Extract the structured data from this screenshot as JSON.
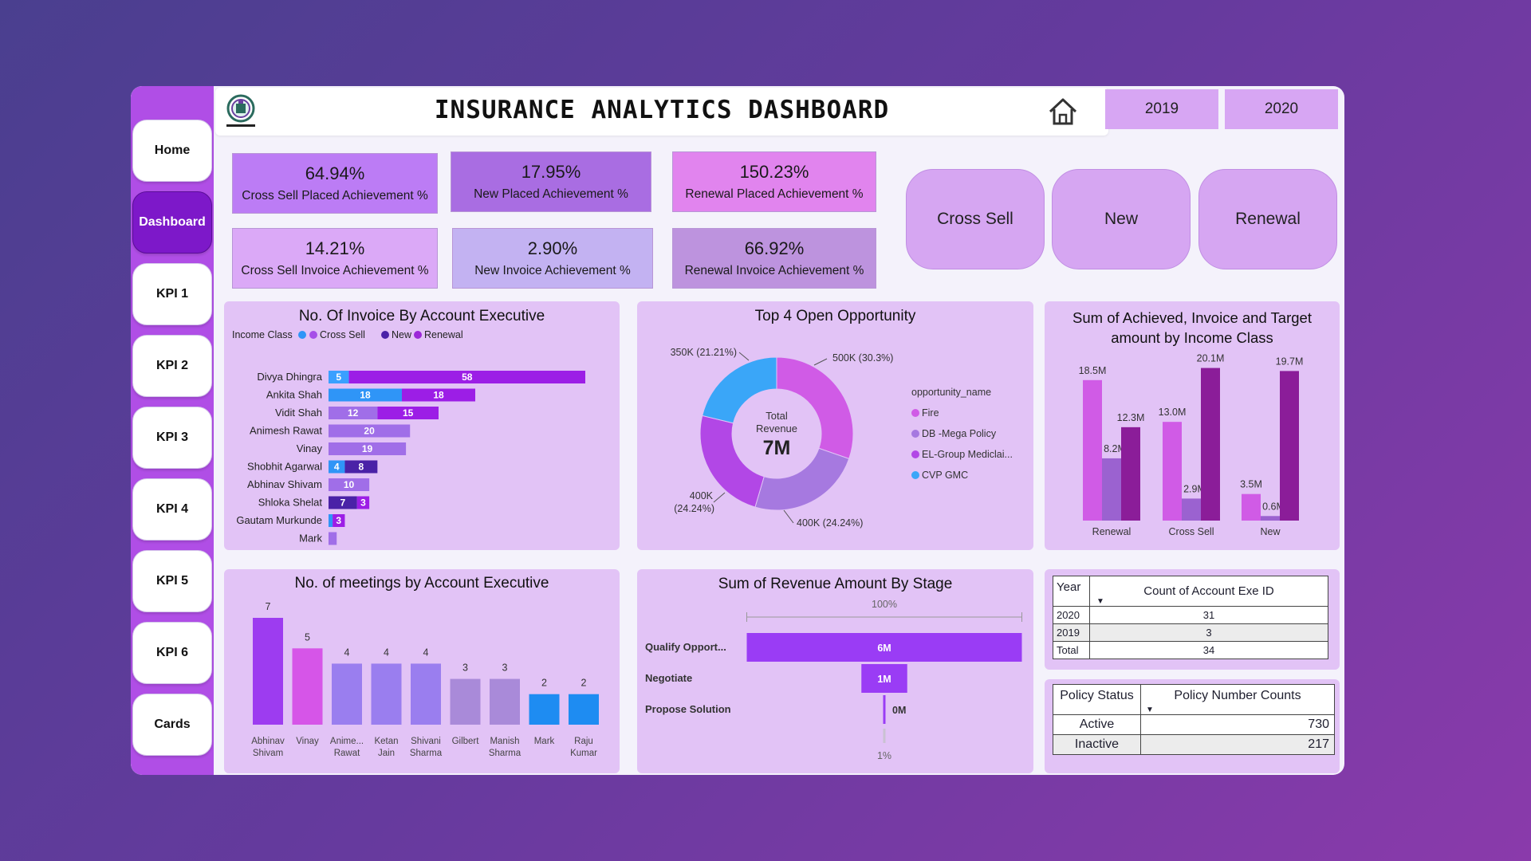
{
  "title": "INSURANCE ANALYTICS DASHBOARD",
  "years": [
    "2019",
    "2020"
  ],
  "nav": [
    "Home",
    "Dashboard",
    "KPI 1",
    "KPI 2",
    "KPI 3",
    "KPI 4",
    "KPI 5",
    "KPI 6",
    "Cards"
  ],
  "active_nav": "Dashboard",
  "kpis": [
    {
      "value": "64.94%",
      "label": "Cross Sell Placed Achievement %",
      "color": "#bc7cf5"
    },
    {
      "value": "17.95%",
      "label": "New Placed Achievement %",
      "color": "#a96de2"
    },
    {
      "value": "150.23%",
      "label": "Renewal Placed Achievement %",
      "color": "#e184ee"
    },
    {
      "value": "14.21%",
      "label": "Cross Sell Invoice Achievement %",
      "color": "#dba9f7"
    },
    {
      "value": "2.90%",
      "label": "New Invoice Achievement %",
      "color": "#c3b2f2"
    },
    {
      "value": "66.92%",
      "label": "Renewal Invoice Achievement %",
      "color": "#bd93de"
    }
  ],
  "pills": [
    "Cross Sell",
    "New",
    "Renewal"
  ],
  "invoice_panel": {
    "title": "No. Of Invoice By Account Executive",
    "legend_title": "Income Class",
    "legend": [
      {
        "name": "Cross Sell",
        "color": "#a64fe8"
      },
      {
        "name": "New",
        "color": "#4a22a7"
      },
      {
        "name": "Renewal",
        "color": "#9c27d8"
      }
    ]
  },
  "opportunity_panel": {
    "title": "Top 4 Open Opportunity",
    "center_label": "Total Revenue",
    "center_value": "7M",
    "legend_title": "opportunity_name"
  },
  "income_panel": {
    "title": "Sum of Achieved, Invoice and Target amount by Income Class"
  },
  "meetings_panel": {
    "title": "No. of meetings by Account Executive"
  },
  "stage_panel": {
    "title": "Sum of Revenue Amount By Stage",
    "top_label": "100%",
    "bottom_label": "1%"
  },
  "year_table": {
    "headers": [
      "Year",
      "Count of Account Exe ID"
    ],
    "rows": [
      {
        "year": "2020",
        "count": "31"
      },
      {
        "year": "2019",
        "count": "3"
      },
      {
        "year": "Total",
        "count": "34"
      }
    ]
  },
  "policy_table": {
    "headers": [
      "Policy Status",
      "Policy Number Counts"
    ],
    "rows": [
      {
        "status": "Active",
        "count": "730"
      },
      {
        "status": "Inactive",
        "count": "217"
      }
    ]
  },
  "chart_data": [
    {
      "type": "bar",
      "orientation": "horizontal",
      "stacked": true,
      "title": "No. Of Invoice By Account Executive",
      "categories": [
        "Divya Dhingra",
        "Ankita Shah",
        "Vidit Shah",
        "Animesh Rawat",
        "Vinay",
        "Shobhit Agarwal",
        "Abhinav Shivam",
        "Shloka Shelat",
        "Gautam Murkunde",
        "Mark"
      ],
      "segments": [
        [
          {
            "cls": "seg0",
            "value": 5,
            "color": "#3aa0ff",
            "label": "5"
          },
          {
            "cls": "seg1",
            "value": 58,
            "color": "#9c1ee6",
            "label": "58"
          }
        ],
        [
          {
            "cls": "seg0",
            "value": 18,
            "color": "#2f95f7",
            "label": "18"
          },
          {
            "cls": "seg1",
            "value": 18,
            "color": "#9c1ee6",
            "label": "18"
          }
        ],
        [
          {
            "cls": "seg0",
            "value": 12,
            "color": "#a06ee8",
            "label": "12"
          },
          {
            "cls": "seg1",
            "value": 15,
            "color": "#9c1ee6",
            "label": "15"
          }
        ],
        [
          {
            "cls": "seg0",
            "value": 20,
            "color": "#a06ee8",
            "label": "20"
          }
        ],
        [
          {
            "cls": "seg0",
            "value": 19,
            "color": "#a06ee8",
            "label": "19"
          }
        ],
        [
          {
            "cls": "seg0",
            "value": 4,
            "color": "#2f95f7",
            "label": "4"
          },
          {
            "cls": "seg1",
            "value": 8,
            "color": "#4a22a7",
            "label": "8"
          }
        ],
        [
          {
            "cls": "seg0",
            "value": 10,
            "color": "#a06ee8",
            "label": "10"
          }
        ],
        [
          {
            "cls": "seg0",
            "value": 7,
            "color": "#4a22a7",
            "label": "7"
          },
          {
            "cls": "seg1",
            "value": 3,
            "color": "#9c1ee6",
            "label": "3"
          }
        ],
        [
          {
            "cls": "seg0",
            "value": 1,
            "color": "#2f95f7",
            "label": ""
          },
          {
            "cls": "seg1",
            "value": 3,
            "color": "#9c1ee6",
            "label": "3"
          }
        ],
        [
          {
            "cls": "seg0",
            "value": 2,
            "color": "#a06ee8",
            "label": ""
          }
        ]
      ],
      "xlim": [
        0,
        63
      ]
    },
    {
      "type": "pie",
      "donut": true,
      "title": "Top 4 Open Opportunity",
      "slices": [
        {
          "name": "Fire",
          "value": 30.3,
          "label": "500K (30.3%)",
          "color": "#d05be6"
        },
        {
          "name": "DB -Mega Policy",
          "value": 24.24,
          "label": "400K (24.24%)",
          "color": "#a679e0"
        },
        {
          "name": "EL-Group Mediclai...",
          "value": 24.24,
          "label": "400K (24.24%)",
          "color": "#b247e6"
        },
        {
          "name": "CVP GMC",
          "value": 21.21,
          "label": "350K (21.21%)",
          "color": "#3aa6f8"
        }
      ]
    },
    {
      "type": "bar",
      "title": "Sum of Achieved, Invoice and Target amount by Income Class",
      "categories": [
        "Renewal",
        "Cross Sell",
        "New"
      ],
      "series": [
        {
          "name": "Achieved",
          "color": "#d05be6",
          "values": [
            18.5,
            13.0,
            3.5
          ],
          "labels": [
            "18.5M",
            "13.0M",
            "3.5M"
          ]
        },
        {
          "name": "Invoice",
          "color": "#9b62d0",
          "values": [
            8.2,
            2.9,
            0.6
          ],
          "labels": [
            "8.2M",
            "2.9M",
            "0.6M"
          ]
        },
        {
          "name": "Target",
          "color": "#8b1d99",
          "values": [
            12.3,
            20.1,
            19.7
          ],
          "labels": [
            "12.3M",
            "20.1M",
            "19.7M"
          ]
        }
      ],
      "ylim": [
        0,
        21
      ]
    },
    {
      "type": "bar",
      "title": "No. of meetings by Account Executive",
      "categories": [
        "Abhinav Shivam",
        "Vinay",
        "Anime... Rawat",
        "Ketan Jain",
        "Shivani Sharma",
        "Gilbert",
        "Manish Sharma",
        "Mark",
        "Raju Kumar"
      ],
      "values": [
        7,
        5,
        4,
        4,
        4,
        3,
        3,
        2,
        2
      ],
      "colors": [
        "#9d3cf0",
        "#d655e8",
        "#9a7eef",
        "#9a7eef",
        "#9a7eef",
        "#a98ad9",
        "#a98ad9",
        "#1e8cf2",
        "#1e8cf2"
      ],
      "ylim": [
        0,
        7
      ]
    },
    {
      "type": "bar",
      "orientation": "funnel",
      "title": "Sum of Revenue Amount By Stage",
      "categories": [
        "Qualify Opport...",
        "Negotiate",
        "Propose Solution"
      ],
      "values": [
        6,
        1,
        0.05
      ],
      "labels": [
        "6M",
        "1M",
        "0M"
      ],
      "colors": [
        "#9a3cf5",
        "#9a3cf5",
        "#9a3cf5"
      ]
    }
  ]
}
